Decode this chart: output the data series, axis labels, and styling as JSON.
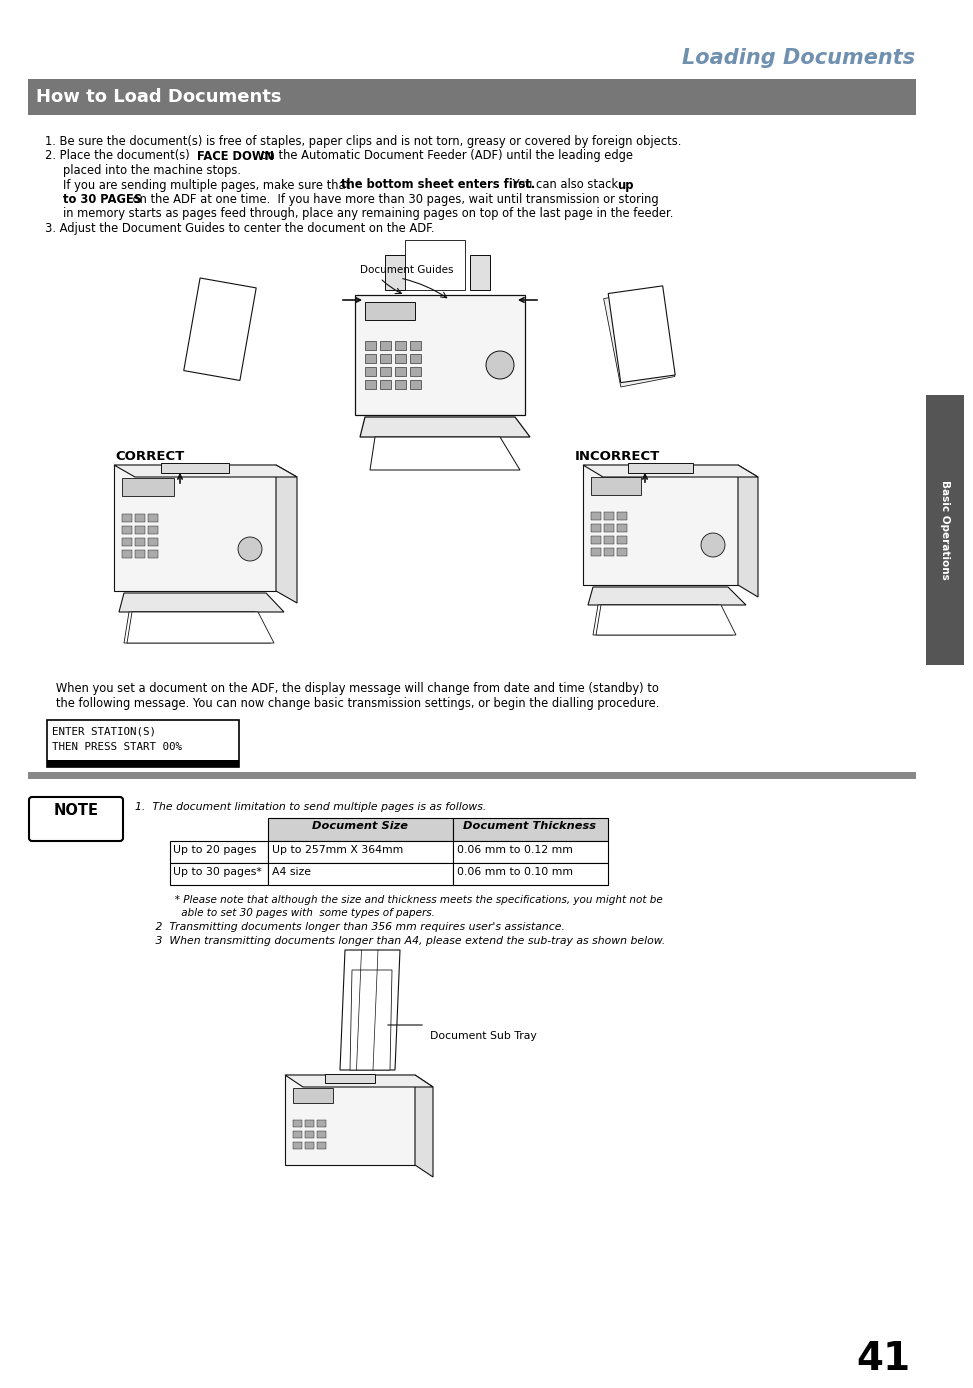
{
  "page_title": "Loading Documents",
  "section_title": "How to Load Documents",
  "page_number": "41",
  "side_tab": "Basic Operations",
  "body_text_1": "1. Be sure the document(s) is free of staples, paper clips and is not torn, greasy or covered by foreign objects.",
  "body_text_2_normal1": "2. Place the document(s) ",
  "body_text_2_bold1": "FACE DOWN",
  "body_text_2_normal2": " on the Automatic Document Feeder (ADF) until the leading edge",
  "body_text_2_line2": "   placed into the machine stops.",
  "body_text_2_pre": "   If you are sending multiple pages, make sure that ",
  "body_text_2_bold2": "the bottom sheet enters first.",
  "body_text_2_mid": " You can also stack ",
  "body_text_2_bold3": "up",
  "body_text_2_bold4": "   to 30 PAGES",
  "body_text_2_rest": " on the ADF at one time.  If you have more than 30 pages, wait until transmission or storing",
  "body_text_2_line4": "   in memory starts as pages feed through, place any remaining pages on top of the last page in the feeder.",
  "body_text_3": "3. Adjust the Document Guides to center the document on the ADF.",
  "doc_guides_label": "Document Guides",
  "correct_label": "CORRECT",
  "incorrect_label": "INCORRECT",
  "when_text": "   When you set a document on the ADF, the display message will change from date and time (standby) to",
  "when_text2": "   the following message. You can now change basic transmission settings, or begin the dialling procedure.",
  "lcd_line1": "ENTER STATION(S)",
  "lcd_line2": "THEN PRESS START 00%",
  "note_text1": "1.  The document limitation to send multiple pages is as follows.",
  "table_header1": "Document Size",
  "table_header2": "Document Thickness",
  "table_row1_c0": "Up to 20 pages",
  "table_row1_c1": "Up to 257mm X 364mm",
  "table_row1_c2": "0.06 mm to 0.12 mm",
  "table_row2_c0": "Up to 30 pages*",
  "table_row2_c1": "A4 size",
  "table_row2_c2": "0.06 mm to 0.10 mm",
  "footnote1": "   * Please note that although the size and thickness meets the specifications, you might not be",
  "footnote1b": "     able to set 30 pages with  some types of papers.",
  "note_text2": "   2  Transmitting documents longer than 356 mm requires user's assistance.",
  "note_text3": "   3  When transmitting documents longer than A4, please extend the sub-tray as shown below.",
  "sub_tray_label": "Document Sub Tray",
  "bg_color": "#ffffff",
  "title_color": "#7090b0",
  "section_bg": "#777777",
  "section_text_color": "#ffffff",
  "side_tab_bg": "#555555",
  "side_tab_text_color": "#ffffff",
  "body_text_color": "#000000",
  "table_header_bg": "#cccccc",
  "separator_color": "#888888",
  "fax_body_color": "#f5f5f5",
  "fax_edge_color": "#222222",
  "fax_dark": "#aaaaaa"
}
